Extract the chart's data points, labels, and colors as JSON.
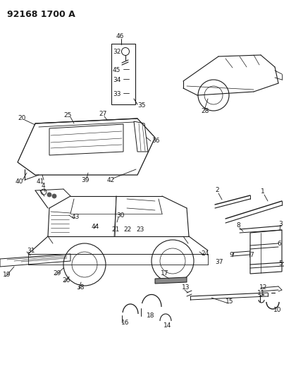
{
  "title": "92168 1700 A",
  "bg_color": "#ffffff",
  "fig_width": 4.03,
  "fig_height": 5.33,
  "dpi": 100
}
